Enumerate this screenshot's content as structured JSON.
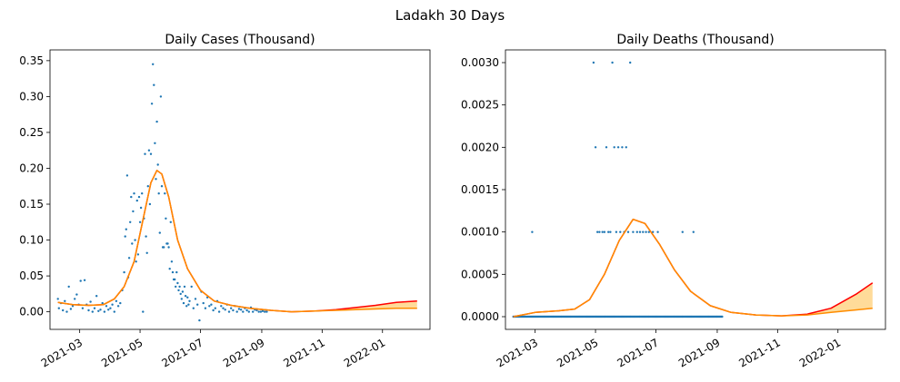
{
  "suptitle": "Ladakh 30 Days",
  "chart_data": [
    {
      "type": "scatter",
      "title": "Daily Cases (Thousand)",
      "xlabel": "",
      "ylabel": "",
      "x_range": [
        "2021-01-30",
        "2022-02-18"
      ],
      "ylim": [
        -0.0245,
        0.365
      ],
      "xticks": [
        "2021-03-01",
        "2021-05-01",
        "2021-07-01",
        "2021-09-01",
        "2021-11-01",
        "2022-01-01"
      ],
      "xtick_labels": [
        "2021-03",
        "2021-05",
        "2021-07",
        "2021-09",
        "2021-11",
        "2022-01"
      ],
      "yticks": [
        0.0,
        0.05,
        0.1,
        0.15,
        0.2,
        0.25,
        0.3,
        0.35
      ],
      "ytick_labels": [
        "0.00",
        "0.05",
        "0.10",
        "0.15",
        "0.20",
        "0.25",
        "0.30",
        "0.35"
      ],
      "colors": {
        "points": "#1f77b4",
        "upper": "#ff0000",
        "lower": "#ff8c00",
        "band": "#ffa500"
      },
      "series": [
        {
          "kind": "points",
          "x": [
            "2021-02-07",
            "2021-02-08",
            "2021-02-10",
            "2021-02-12",
            "2021-02-14",
            "2021-02-16",
            "2021-02-18",
            "2021-02-20",
            "2021-02-22",
            "2021-02-24",
            "2021-02-26",
            "2021-02-28",
            "2021-03-02",
            "2021-03-04",
            "2021-03-06",
            "2021-03-08",
            "2021-03-10",
            "2021-03-12",
            "2021-03-14",
            "2021-03-16",
            "2021-03-18",
            "2021-03-20",
            "2021-03-22",
            "2021-03-24",
            "2021-03-26",
            "2021-03-28",
            "2021-03-30",
            "2021-04-01",
            "2021-04-03",
            "2021-04-05",
            "2021-04-07",
            "2021-04-09",
            "2021-04-11",
            "2021-04-13",
            "2021-04-15",
            "2021-04-16",
            "2021-04-17",
            "2021-04-18",
            "2021-04-19",
            "2021-04-20",
            "2021-04-21",
            "2021-04-22",
            "2021-04-23",
            "2021-04-24",
            "2021-04-25",
            "2021-04-26",
            "2021-04-27",
            "2021-04-28",
            "2021-04-29",
            "2021-04-30",
            "2021-05-01",
            "2021-05-02",
            "2021-05-03",
            "2021-05-04",
            "2021-05-05",
            "2021-05-06",
            "2021-05-07",
            "2021-05-08",
            "2021-05-09",
            "2021-05-10",
            "2021-05-11",
            "2021-05-12",
            "2021-05-13",
            "2021-05-14",
            "2021-05-15",
            "2021-05-16",
            "2021-05-17",
            "2021-05-18",
            "2021-05-19",
            "2021-05-20",
            "2021-05-21",
            "2021-05-22",
            "2021-05-23",
            "2021-05-24",
            "2021-05-25",
            "2021-05-26",
            "2021-05-27",
            "2021-05-28",
            "2021-05-29",
            "2021-05-30",
            "2021-05-31",
            "2021-06-01",
            "2021-06-02",
            "2021-06-03",
            "2021-06-04",
            "2021-06-05",
            "2021-06-06",
            "2021-06-07",
            "2021-06-08",
            "2021-06-09",
            "2021-06-10",
            "2021-06-11",
            "2021-06-12",
            "2021-06-13",
            "2021-06-14",
            "2021-06-15",
            "2021-06-16",
            "2021-06-17",
            "2021-06-18",
            "2021-06-19",
            "2021-06-20",
            "2021-06-22",
            "2021-06-24",
            "2021-06-26",
            "2021-06-28",
            "2021-06-30",
            "2021-07-02",
            "2021-07-04",
            "2021-07-06",
            "2021-07-08",
            "2021-07-10",
            "2021-07-12",
            "2021-07-14",
            "2021-07-16",
            "2021-07-18",
            "2021-07-20",
            "2021-07-22",
            "2021-07-24",
            "2021-07-26",
            "2021-07-28",
            "2021-07-30",
            "2021-08-01",
            "2021-08-03",
            "2021-08-05",
            "2021-08-07",
            "2021-08-09",
            "2021-08-11",
            "2021-08-13",
            "2021-08-15",
            "2021-08-17",
            "2021-08-19",
            "2021-08-21",
            "2021-08-23",
            "2021-08-25",
            "2021-08-27",
            "2021-08-29",
            "2021-08-31",
            "2021-09-02",
            "2021-09-04",
            "2021-09-06"
          ],
          "y": [
            0.018,
            0.005,
            0.012,
            0.002,
            0.015,
            0.0,
            0.035,
            0.004,
            0.008,
            0.018,
            0.024,
            0.01,
            0.043,
            0.005,
            0.044,
            0.01,
            0.002,
            0.014,
            0.0,
            0.005,
            0.022,
            0.001,
            0.003,
            0.012,
            0.0,
            0.008,
            0.003,
            0.005,
            0.01,
            0.0,
            0.015,
            0.008,
            0.012,
            0.03,
            0.055,
            0.105,
            0.115,
            0.19,
            0.048,
            0.075,
            0.125,
            0.16,
            0.095,
            0.14,
            0.165,
            0.1,
            0.07,
            0.155,
            0.08,
            0.16,
            0.125,
            0.145,
            0.165,
            0.0,
            0.13,
            0.22,
            0.105,
            0.082,
            0.175,
            0.225,
            0.15,
            0.22,
            0.29,
            0.345,
            0.316,
            0.235,
            0.185,
            0.265,
            0.205,
            0.165,
            0.11,
            0.3,
            0.175,
            0.09,
            0.09,
            0.165,
            0.13,
            0.095,
            0.095,
            0.09,
            0.06,
            0.125,
            0.07,
            0.055,
            0.045,
            0.045,
            0.035,
            0.055,
            0.04,
            0.03,
            0.035,
            0.025,
            0.018,
            0.028,
            0.012,
            0.035,
            0.022,
            0.008,
            0.02,
            0.01,
            0.015,
            0.035,
            0.005,
            0.018,
            0.01,
            -0.012,
            0.028,
            0.012,
            0.005,
            0.02,
            0.008,
            0.01,
            0.002,
            0.005,
            0.015,
            0.0,
            0.008,
            0.005,
            0.003,
            0.01,
            0.0,
            0.005,
            0.002,
            0.008,
            0.0,
            0.004,
            0.003,
            0.0,
            0.005,
            0.002,
            0.0,
            0.006,
            0.0,
            0.003,
            0.002,
            0.0,
            0.0,
            0.001,
            0.0,
            0.0
          ]
        },
        {
          "kind": "line",
          "name": "upper",
          "style": "upper",
          "x": [
            "2021-02-07",
            "2021-02-22",
            "2021-03-10",
            "2021-03-25",
            "2021-04-05",
            "2021-04-15",
            "2021-04-25",
            "2021-05-05",
            "2021-05-12",
            "2021-05-18",
            "2021-05-23",
            "2021-05-30",
            "2021-06-08",
            "2021-06-18",
            "2021-07-01",
            "2021-07-15",
            "2021-08-01",
            "2021-08-20",
            "2021-09-10",
            "2021-10-01",
            "2021-10-25",
            "2021-11-15",
            "2021-12-05",
            "2021-12-25",
            "2022-01-15",
            "2022-02-05"
          ],
          "y": [
            0.013,
            0.01,
            0.009,
            0.01,
            0.018,
            0.035,
            0.07,
            0.135,
            0.18,
            0.197,
            0.192,
            0.16,
            0.1,
            0.06,
            0.03,
            0.015,
            0.009,
            0.005,
            0.002,
            0.0,
            0.001,
            0.003,
            0.006,
            0.009,
            0.013,
            0.015
          ]
        },
        {
          "kind": "line",
          "name": "lower",
          "style": "lower",
          "x": [
            "2021-02-07",
            "2021-02-22",
            "2021-03-10",
            "2021-03-25",
            "2021-04-05",
            "2021-04-15",
            "2021-04-25",
            "2021-05-05",
            "2021-05-12",
            "2021-05-18",
            "2021-05-23",
            "2021-05-30",
            "2021-06-08",
            "2021-06-18",
            "2021-07-01",
            "2021-07-15",
            "2021-08-01",
            "2021-08-20",
            "2021-09-10",
            "2021-10-01",
            "2021-10-25",
            "2021-11-15",
            "2021-12-05",
            "2021-12-25",
            "2022-01-15",
            "2022-02-05"
          ],
          "y": [
            0.013,
            0.01,
            0.009,
            0.01,
            0.018,
            0.035,
            0.07,
            0.135,
            0.18,
            0.197,
            0.192,
            0.16,
            0.1,
            0.06,
            0.03,
            0.015,
            0.009,
            0.005,
            0.002,
            0.0,
            0.001,
            0.002,
            0.003,
            0.004,
            0.005,
            0.005
          ]
        }
      ]
    },
    {
      "type": "scatter",
      "title": "Daily Deaths (Thousand)",
      "xlabel": "",
      "ylabel": "",
      "x_range": [
        "2021-01-30",
        "2022-02-18"
      ],
      "ylim": [
        -0.00015,
        0.00315
      ],
      "xticks": [
        "2021-03-01",
        "2021-05-01",
        "2021-07-01",
        "2021-09-01",
        "2021-11-01",
        "2022-01-01"
      ],
      "xtick_labels": [
        "2021-03",
        "2021-05",
        "2021-07",
        "2021-09",
        "2021-11",
        "2022-01"
      ],
      "yticks": [
        0.0,
        0.0005,
        0.001,
        0.0015,
        0.002,
        0.0025,
        0.003
      ],
      "ytick_labels": [
        "0.0000",
        "0.0005",
        "0.0010",
        "0.0015",
        "0.0020",
        "0.0025",
        "0.0030"
      ],
      "colors": {
        "points": "#1f77b4",
        "upper": "#ff0000",
        "lower": "#ff8c00",
        "band": "#ffa500"
      },
      "series": [
        {
          "kind": "points",
          "x": [
            "2021-02-26",
            "2021-04-29",
            "2021-05-01",
            "2021-05-03",
            "2021-05-05",
            "2021-05-08",
            "2021-05-10",
            "2021-05-12",
            "2021-05-14",
            "2021-05-16",
            "2021-05-18",
            "2021-05-20",
            "2021-05-22",
            "2021-05-24",
            "2021-05-26",
            "2021-05-28",
            "2021-05-30",
            "2021-06-01",
            "2021-06-03",
            "2021-06-05",
            "2021-06-08",
            "2021-06-12",
            "2021-06-15",
            "2021-06-18",
            "2021-06-21",
            "2021-06-24",
            "2021-06-28",
            "2021-07-03",
            "2021-07-28",
            "2021-08-08"
          ],
          "y": [
            0.001,
            0.003,
            0.002,
            0.001,
            0.001,
            0.001,
            0.001,
            0.002,
            0.001,
            0.001,
            0.003,
            0.002,
            0.001,
            0.002,
            0.001,
            0.002,
            0.001,
            0.002,
            0.001,
            0.003,
            0.001,
            0.001,
            0.001,
            0.001,
            0.001,
            0.001,
            0.001,
            0.001,
            0.001,
            0.001
          ]
        },
        {
          "kind": "zero_run",
          "x_start": "2021-02-07",
          "x_end": "2021-09-06",
          "y": 0
        },
        {
          "kind": "line",
          "name": "upper",
          "style": "upper",
          "x": [
            "2021-02-07",
            "2021-03-01",
            "2021-03-25",
            "2021-04-10",
            "2021-04-25",
            "2021-05-10",
            "2021-05-25",
            "2021-06-08",
            "2021-06-20",
            "2021-07-05",
            "2021-07-20",
            "2021-08-05",
            "2021-08-25",
            "2021-09-15",
            "2021-10-10",
            "2021-11-05",
            "2021-12-01",
            "2021-12-25",
            "2022-01-20",
            "2022-02-05"
          ],
          "y": [
            0.0,
            5e-05,
            7e-05,
            9e-05,
            0.0002,
            0.0005,
            0.0009,
            0.00115,
            0.0011,
            0.00085,
            0.00055,
            0.0003,
            0.00013,
            5e-05,
            2e-05,
            1e-05,
            3e-05,
            0.0001,
            0.00027,
            0.0004
          ]
        },
        {
          "kind": "line",
          "name": "lower",
          "style": "lower",
          "x": [
            "2021-02-07",
            "2021-03-01",
            "2021-03-25",
            "2021-04-10",
            "2021-04-25",
            "2021-05-10",
            "2021-05-25",
            "2021-06-08",
            "2021-06-20",
            "2021-07-05",
            "2021-07-20",
            "2021-08-05",
            "2021-08-25",
            "2021-09-15",
            "2021-10-10",
            "2021-11-05",
            "2021-12-01",
            "2021-12-25",
            "2022-01-20",
            "2022-02-05"
          ],
          "y": [
            0.0,
            5e-05,
            7e-05,
            9e-05,
            0.0002,
            0.0005,
            0.0009,
            0.00115,
            0.0011,
            0.00085,
            0.00055,
            0.0003,
            0.00013,
            5e-05,
            2e-05,
            1e-05,
            2e-05,
            5e-05,
            8e-05,
            0.0001
          ]
        }
      ]
    }
  ]
}
